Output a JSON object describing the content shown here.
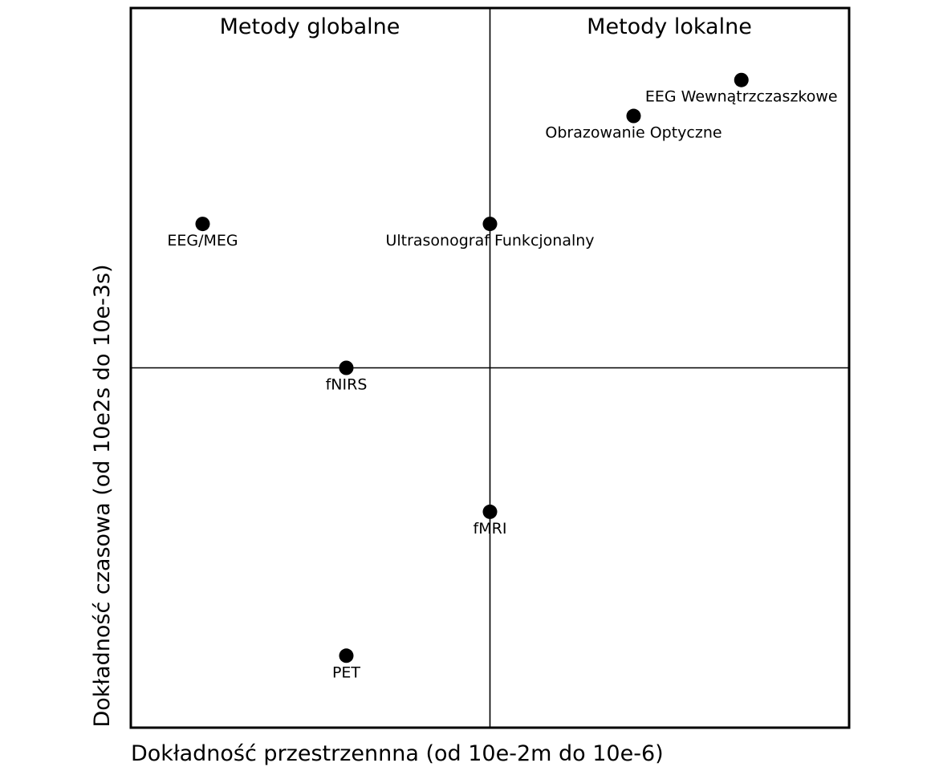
{
  "chart_data": {
    "type": "scatter",
    "xlabel": "Dokładność przestrzennna (od 10e-2m do 10e-6)",
    "ylabel": "Dokładność czasowa (od 10e2s do 10e-3s)",
    "xlim": [
      0,
      10
    ],
    "ylim": [
      0,
      10
    ],
    "grid": false,
    "divider": {
      "x": 5,
      "y": 5
    },
    "quadrant_headers": {
      "left": "Metody globalne",
      "right": "Metody lokalne"
    },
    "points": [
      {
        "label": "EEG Wewnątrzczaszkowe",
        "x": 8.5,
        "y": 9.0
      },
      {
        "label": "Obrazowanie Optyczne",
        "x": 7.0,
        "y": 8.5
      },
      {
        "label": "EEG/MEG",
        "x": 1.0,
        "y": 7.0
      },
      {
        "label": "Ultrasonograf Funkcjonalny",
        "x": 5.0,
        "y": 7.0
      },
      {
        "label": "fNIRS",
        "x": 3.0,
        "y": 5.0
      },
      {
        "label": "fMRI",
        "x": 5.0,
        "y": 3.0
      },
      {
        "label": "PET",
        "x": 3.0,
        "y": 1.0
      }
    ]
  }
}
